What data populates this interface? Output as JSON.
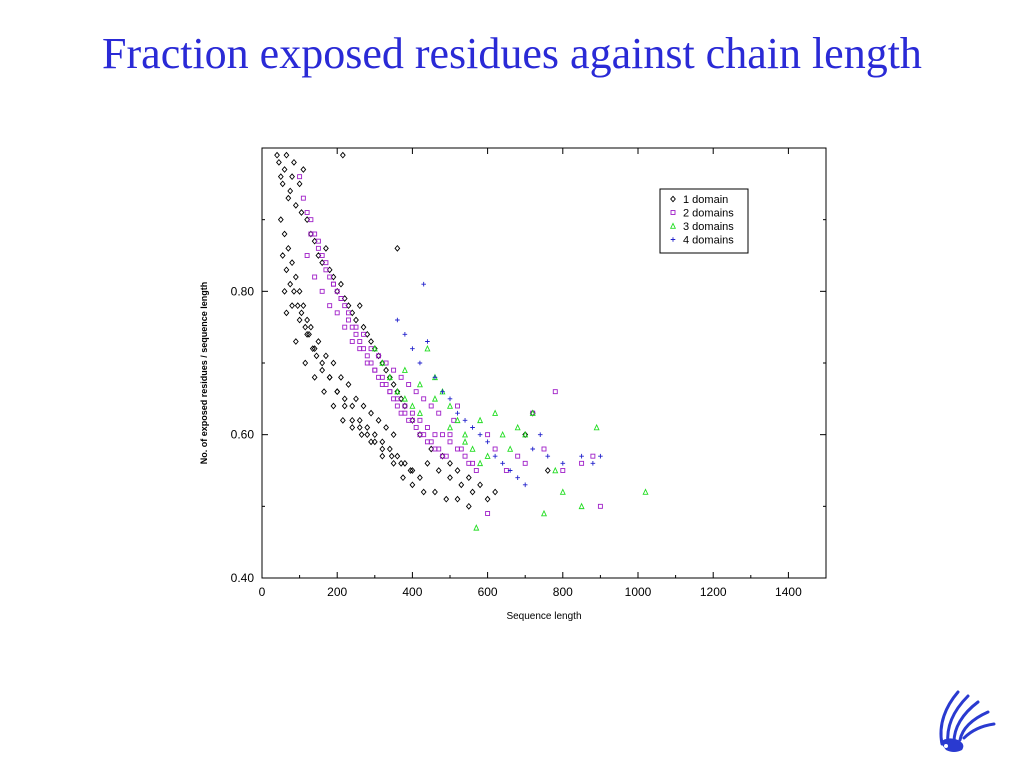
{
  "slide": {
    "title": "Fraction exposed residues against chain length",
    "colors": {
      "title": "#2a2ad6"
    }
  },
  "logo": {
    "icon": "griffin-logo-icon",
    "color": "#2a3ad0"
  },
  "chart_data": {
    "type": "scatter",
    "title": "",
    "xlabel": "Sequence length",
    "ylabel": "No. of exposed residues / sequence length",
    "xlim": [
      0,
      1500
    ],
    "ylim": [
      0.4,
      1.0
    ],
    "xticks": [
      "0",
      "200",
      "400",
      "600",
      "800",
      "1000",
      "1200",
      "1400"
    ],
    "yticks": [
      "0.40",
      "0.60",
      "0.80"
    ],
    "grid": false,
    "legend": "top-right",
    "series": [
      {
        "name": "1 domain",
        "marker": "diamond",
        "color": "#000000",
        "x": [
          40,
          45,
          50,
          55,
          60,
          65,
          70,
          75,
          80,
          85,
          90,
          100,
          105,
          110,
          120,
          130,
          140,
          150,
          160,
          170,
          180,
          190,
          200,
          210,
          220,
          230,
          240,
          250,
          260,
          270,
          280,
          290,
          300,
          310,
          320,
          330,
          340,
          350,
          360,
          370,
          380,
          400,
          420,
          450,
          480,
          500,
          520,
          550,
          580,
          620,
          700,
          720,
          760,
          215,
          360,
          50,
          60,
          70,
          80,
          90,
          100,
          110,
          120,
          130,
          150,
          170,
          190,
          210,
          230,
          250,
          270,
          290,
          310,
          330,
          350,
          55,
          65,
          75,
          85,
          95,
          105,
          115,
          125,
          135,
          145,
          160,
          180,
          200,
          220,
          240,
          260,
          280,
          300,
          320,
          340,
          360,
          380,
          400,
          60,
          80,
          100,
          120,
          140,
          160,
          180,
          200,
          220,
          240,
          260,
          280,
          300,
          320,
          345,
          370,
          395,
          420,
          440,
          470,
          500,
          530,
          560,
          600,
          65,
          90,
          115,
          140,
          165,
          190,
          215,
          240,
          265,
          290,
          320,
          350,
          375,
          400,
          430,
          460,
          490,
          520,
          550
        ],
        "y": [
          0.99,
          0.98,
          0.96,
          0.95,
          0.97,
          0.99,
          0.93,
          0.94,
          0.96,
          0.98,
          0.92,
          0.95,
          0.91,
          0.97,
          0.9,
          0.88,
          0.87,
          0.85,
          0.84,
          0.86,
          0.83,
          0.82,
          0.8,
          0.81,
          0.79,
          0.78,
          0.77,
          0.76,
          0.78,
          0.75,
          0.74,
          0.73,
          0.72,
          0.71,
          0.7,
          0.69,
          0.68,
          0.67,
          0.66,
          0.65,
          0.64,
          0.62,
          0.6,
          0.58,
          0.57,
          0.56,
          0.55,
          0.54,
          0.53,
          0.52,
          0.6,
          0.63,
          0.55,
          0.99,
          0.86,
          0.9,
          0.88,
          0.86,
          0.84,
          0.82,
          0.8,
          0.78,
          0.76,
          0.75,
          0.73,
          0.71,
          0.7,
          0.68,
          0.67,
          0.65,
          0.64,
          0.63,
          0.62,
          0.61,
          0.6,
          0.85,
          0.83,
          0.81,
          0.8,
          0.78,
          0.77,
          0.75,
          0.74,
          0.72,
          0.71,
          0.69,
          0.68,
          0.66,
          0.65,
          0.64,
          0.62,
          0.61,
          0.6,
          0.59,
          0.58,
          0.57,
          0.56,
          0.55,
          0.8,
          0.78,
          0.76,
          0.74,
          0.72,
          0.7,
          0.68,
          0.66,
          0.64,
          0.62,
          0.61,
          0.6,
          0.59,
          0.58,
          0.57,
          0.56,
          0.55,
          0.54,
          0.56,
          0.55,
          0.54,
          0.53,
          0.52,
          0.51,
          0.77,
          0.73,
          0.7,
          0.68,
          0.66,
          0.64,
          0.62,
          0.61,
          0.6,
          0.59,
          0.57,
          0.56,
          0.54,
          0.53,
          0.52,
          0.52,
          0.51,
          0.51,
          0.5
        ]
      },
      {
        "name": "2 domains",
        "marker": "square",
        "color": "#a020c8",
        "x": [
          100,
          110,
          120,
          130,
          140,
          150,
          160,
          170,
          180,
          190,
          200,
          210,
          220,
          230,
          240,
          250,
          260,
          270,
          280,
          290,
          300,
          310,
          320,
          330,
          340,
          350,
          360,
          370,
          380,
          390,
          400,
          410,
          420,
          430,
          440,
          450,
          460,
          470,
          480,
          490,
          500,
          510,
          520,
          530,
          550,
          570,
          600,
          620,
          650,
          680,
          700,
          720,
          750,
          780,
          800,
          850,
          880,
          900,
          600,
          120,
          140,
          160,
          180,
          200,
          220,
          240,
          260,
          280,
          300,
          320,
          340,
          360,
          380,
          400,
          420,
          440,
          460,
          480,
          500,
          520,
          540,
          560,
          130,
          150,
          170,
          190,
          210,
          230,
          250,
          270,
          290,
          310,
          330,
          350,
          370,
          390,
          410,
          430,
          450,
          470
        ],
        "y": [
          0.96,
          0.93,
          0.91,
          0.9,
          0.88,
          0.87,
          0.85,
          0.84,
          0.82,
          0.81,
          0.8,
          0.79,
          0.78,
          0.76,
          0.75,
          0.74,
          0.73,
          0.72,
          0.71,
          0.7,
          0.69,
          0.68,
          0.68,
          0.67,
          0.66,
          0.65,
          0.64,
          0.63,
          0.63,
          0.62,
          0.62,
          0.61,
          0.6,
          0.6,
          0.59,
          0.59,
          0.58,
          0.58,
          0.57,
          0.57,
          0.6,
          0.62,
          0.64,
          0.58,
          0.56,
          0.55,
          0.6,
          0.58,
          0.55,
          0.57,
          0.56,
          0.63,
          0.58,
          0.66,
          0.55,
          0.56,
          0.57,
          0.5,
          0.49,
          0.85,
          0.82,
          0.8,
          0.78,
          0.77,
          0.75,
          0.73,
          0.72,
          0.7,
          0.69,
          0.67,
          0.66,
          0.65,
          0.64,
          0.63,
          0.62,
          0.61,
          0.6,
          0.6,
          0.59,
          0.58,
          0.57,
          0.56,
          0.88,
          0.86,
          0.83,
          0.81,
          0.79,
          0.77,
          0.75,
          0.74,
          0.72,
          0.71,
          0.7,
          0.69,
          0.68,
          0.67,
          0.66,
          0.65,
          0.64,
          0.63
        ]
      },
      {
        "name": "3 domains",
        "marker": "triangle",
        "color": "#22dd22",
        "x": [
          300,
          320,
          340,
          360,
          380,
          400,
          420,
          440,
          460,
          480,
          500,
          520,
          540,
          560,
          580,
          600,
          620,
          640,
          660,
          680,
          700,
          720,
          750,
          780,
          800,
          850,
          890,
          1020,
          570,
          380,
          420,
          460,
          500,
          540,
          580
        ],
        "y": [
          0.72,
          0.7,
          0.68,
          0.66,
          0.65,
          0.64,
          0.63,
          0.72,
          0.68,
          0.66,
          0.64,
          0.62,
          0.6,
          0.58,
          0.62,
          0.57,
          0.63,
          0.6,
          0.58,
          0.61,
          0.6,
          0.63,
          0.49,
          0.55,
          0.52,
          0.5,
          0.61,
          0.52,
          0.47,
          0.69,
          0.67,
          0.65,
          0.61,
          0.59,
          0.56
        ]
      },
      {
        "name": "4 domains",
        "marker": "plus",
        "color": "#2222cc",
        "x": [
          430,
          360,
          380,
          400,
          420,
          440,
          460,
          480,
          500,
          520,
          540,
          560,
          580,
          600,
          620,
          640,
          660,
          680,
          700,
          720,
          740,
          760,
          800,
          850,
          880,
          900
        ],
        "y": [
          0.81,
          0.76,
          0.74,
          0.72,
          0.7,
          0.73,
          0.68,
          0.66,
          0.65,
          0.63,
          0.62,
          0.61,
          0.6,
          0.59,
          0.57,
          0.56,
          0.55,
          0.54,
          0.53,
          0.58,
          0.6,
          0.57,
          0.56,
          0.57,
          0.56,
          0.57
        ]
      }
    ]
  }
}
